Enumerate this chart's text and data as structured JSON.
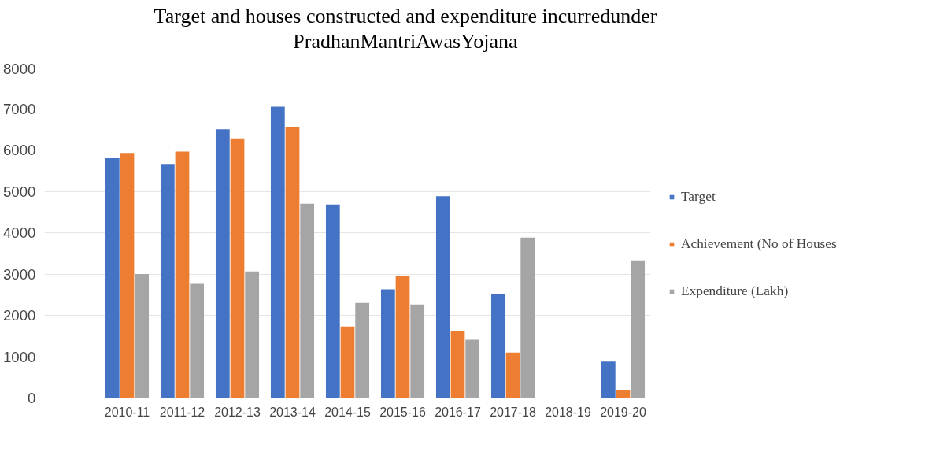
{
  "chart_data": {
    "type": "bar",
    "title": "Target and houses constructed and expenditure incurredunder PradhanMantriAwasYojana",
    "categories": [
      null,
      "2010-11",
      "2011-12",
      "2012-13",
      "2013-14",
      "2014-15",
      "2015-16",
      "2016-17",
      "2017-18",
      "2018-19",
      "2019-20"
    ],
    "series": [
      {
        "name": "Target",
        "color": "#4472c4",
        "values": [
          null,
          5800,
          5660,
          6500,
          7050,
          4680,
          2630,
          4880,
          2510,
          null,
          880
        ]
      },
      {
        "name": "Achievement (No of Houses",
        "color": "#ed7d31",
        "values": [
          null,
          5930,
          5960,
          6280,
          6560,
          1730,
          2960,
          1630,
          1100,
          null,
          200
        ]
      },
      {
        "name": "Expenditure (Lakh)",
        "color": "#a5a5a5",
        "values": [
          null,
          3000,
          2760,
          3060,
          4700,
          2300,
          2260,
          1410,
          3880,
          null,
          3330
        ]
      }
    ],
    "ylim": [
      0,
      8000
    ],
    "yticks": [
      0,
      1000,
      2000,
      3000,
      4000,
      5000,
      6000,
      7000,
      8000
    ],
    "grid": "y",
    "legend": "right"
  }
}
